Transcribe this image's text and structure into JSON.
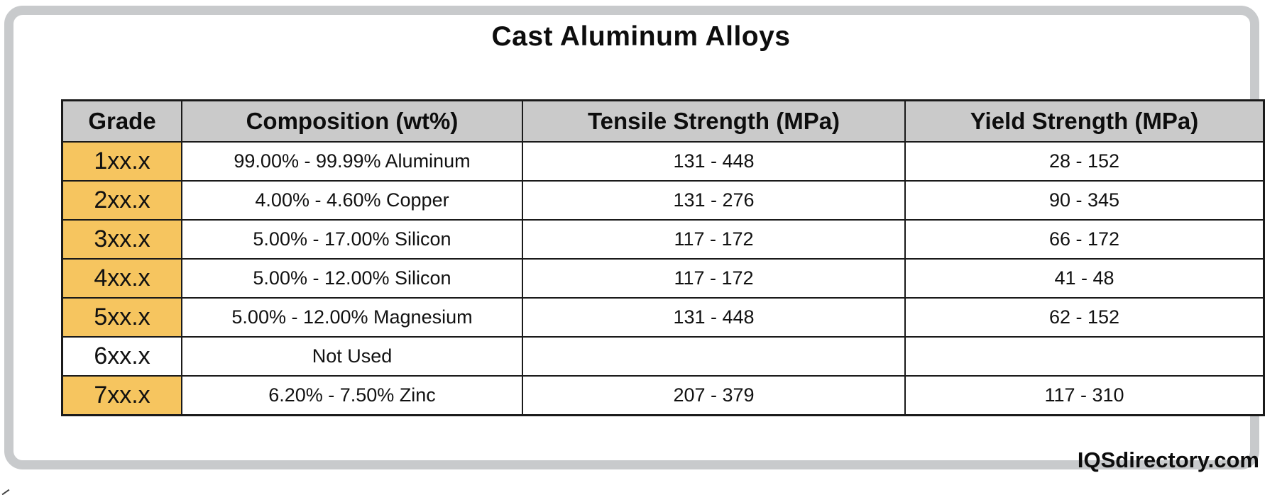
{
  "chart_data": {
    "type": "table",
    "title": "Cast Aluminum Alloys",
    "columns": [
      "Grade",
      "Composition (wt%)",
      "Tensile Strength (MPa)",
      "Yield Strength (MPa)"
    ],
    "rows": [
      {
        "grade": "1xx.x",
        "composition": "99.00% - 99.99% Aluminum",
        "tensile": "131 - 448",
        "yield": "28 - 152",
        "highlighted": true
      },
      {
        "grade": "2xx.x",
        "composition": "4.00% - 4.60% Copper",
        "tensile": "131 - 276",
        "yield": "90 - 345",
        "highlighted": true
      },
      {
        "grade": "3xx.x",
        "composition": "5.00% - 17.00% Silicon",
        "tensile": "117 - 172",
        "yield": "66 - 172",
        "highlighted": true
      },
      {
        "grade": "4xx.x",
        "composition": "5.00% - 12.00% Silicon",
        "tensile": "117 - 172",
        "yield": "41 - 48",
        "highlighted": true
      },
      {
        "grade": "5xx.x",
        "composition": "5.00% - 12.00% Magnesium",
        "tensile": "131 - 448",
        "yield": "62 - 152",
        "highlighted": true
      },
      {
        "grade": "6xx.x",
        "composition": "Not Used",
        "tensile": "",
        "yield": "",
        "highlighted": false
      },
      {
        "grade": "7xx.x",
        "composition": "6.20% - 7.50% Zinc",
        "tensile": "207 - 379",
        "yield": "117 - 310",
        "highlighted": true
      }
    ]
  },
  "watermark": {
    "text": "IQSdirectory.com"
  },
  "colors": {
    "frame_grey": "#c8cacc",
    "header_bg": "#cacaca",
    "grade_bg": "#f6c55f",
    "line": "#1a1a1a"
  }
}
